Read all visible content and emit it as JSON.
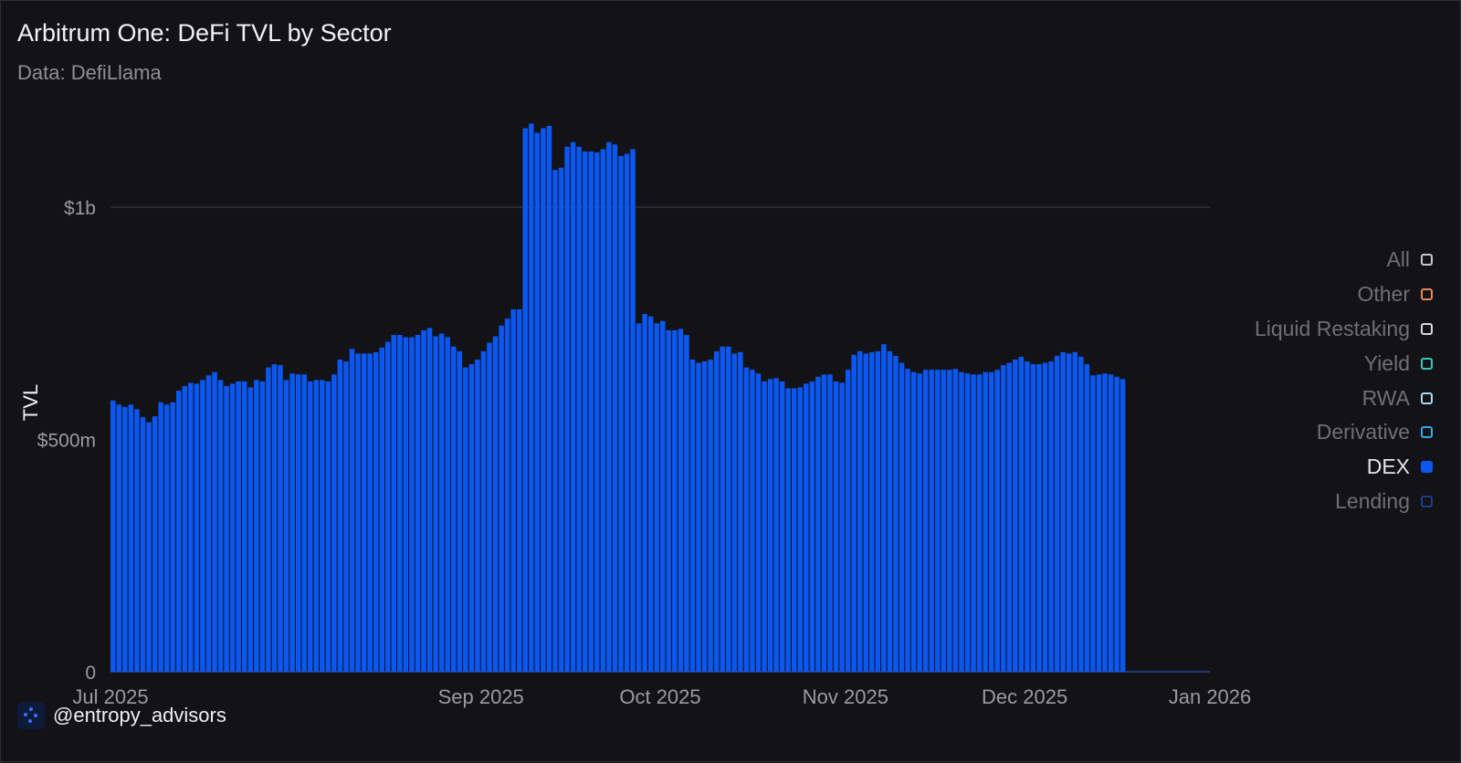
{
  "title": "Arbitrum One: DeFi TVL by Sector",
  "subtitle": "Data: DefiLlama",
  "credit": "@entropy_advisors",
  "legend": [
    {
      "label": "All",
      "color": "#c8c8cc",
      "active": false
    },
    {
      "label": "Other",
      "color": "#e8875a",
      "active": false
    },
    {
      "label": "Liquid Restaking",
      "color": "#d8d8dc",
      "active": false
    },
    {
      "label": "Yield",
      "color": "#3ec8b4",
      "active": false
    },
    {
      "label": "RWA",
      "color": "#a9d8f0",
      "active": false
    },
    {
      "label": "Derivative",
      "color": "#3aa6e0",
      "active": false
    },
    {
      "label": "DEX",
      "color": "#0b57f0",
      "active": true
    },
    {
      "label": "Lending",
      "color": "#1f3e8a",
      "active": false
    }
  ],
  "chart_data": {
    "type": "bar",
    "ylabel": "TVL",
    "ylim": [
      0,
      1200000000
    ],
    "yticks": [
      {
        "value": 0,
        "label": "0"
      },
      {
        "value": 500000000,
        "label": "$500m"
      },
      {
        "value": 1000000000,
        "label": "$1b"
      }
    ],
    "xlim": [
      "2025-07-01",
      "2026-01-01"
    ],
    "xticks": [
      {
        "date": "2025-07-01",
        "label": "Jul 2025"
      },
      {
        "date": "2025-09-01",
        "label": "Sep 2025"
      },
      {
        "date": "2025-10-01",
        "label": "Oct 2025"
      },
      {
        "date": "2025-11-01",
        "label": "Nov 2025"
      },
      {
        "date": "2025-12-01",
        "label": "Dec 2025"
      },
      {
        "date": "2026-01-01",
        "label": "Jan 2026"
      }
    ],
    "grid_lines": [
      1000000000
    ],
    "series": [
      {
        "name": "DEX",
        "color": "#0b57f0",
        "start_date": "2025-07-01",
        "interval_days": 1,
        "values": [
          584000000,
          575000000,
          570000000,
          575000000,
          565000000,
          548000000,
          537000000,
          550000000,
          580000000,
          575000000,
          580000000,
          605000000,
          615000000,
          622000000,
          620000000,
          628000000,
          638000000,
          645000000,
          628000000,
          615000000,
          620000000,
          625000000,
          625000000,
          612000000,
          628000000,
          625000000,
          655000000,
          662000000,
          660000000,
          628000000,
          642000000,
          640000000,
          640000000,
          625000000,
          628000000,
          628000000,
          625000000,
          640000000,
          672000000,
          668000000,
          695000000,
          685000000,
          685000000,
          685000000,
          688000000,
          698000000,
          710000000,
          725000000,
          725000000,
          720000000,
          720000000,
          725000000,
          735000000,
          740000000,
          722000000,
          728000000,
          720000000,
          700000000,
          690000000,
          655000000,
          662000000,
          672000000,
          690000000,
          708000000,
          722000000,
          745000000,
          760000000,
          780000000,
          780000000,
          1170000000,
          1180000000,
          1160000000,
          1170000000,
          1175000000,
          1080000000,
          1085000000,
          1130000000,
          1140000000,
          1130000000,
          1120000000,
          1120000000,
          1118000000,
          1125000000,
          1140000000,
          1135000000,
          1110000000,
          1115000000,
          1125000000,
          750000000,
          770000000,
          765000000,
          750000000,
          755000000,
          735000000,
          735000000,
          738000000,
          725000000,
          672000000,
          665000000,
          668000000,
          672000000,
          690000000,
          700000000,
          700000000,
          685000000,
          688000000,
          655000000,
          650000000,
          642000000,
          625000000,
          630000000,
          632000000,
          625000000,
          610000000,
          610000000,
          612000000,
          620000000,
          625000000,
          635000000,
          640000000,
          640000000,
          625000000,
          622000000,
          650000000,
          682000000,
          690000000,
          685000000,
          688000000,
          690000000,
          705000000,
          690000000,
          680000000,
          665000000,
          652000000,
          645000000,
          642000000,
          650000000,
          650000000,
          650000000,
          650000000,
          650000000,
          652000000,
          645000000,
          642000000,
          640000000,
          640000000,
          645000000,
          645000000,
          650000000,
          660000000,
          665000000,
          672000000,
          678000000,
          668000000,
          662000000,
          662000000,
          665000000,
          668000000,
          680000000,
          688000000,
          685000000,
          688000000,
          678000000,
          662000000,
          638000000,
          640000000,
          642000000,
          640000000,
          635000000,
          630000000
        ]
      }
    ]
  }
}
